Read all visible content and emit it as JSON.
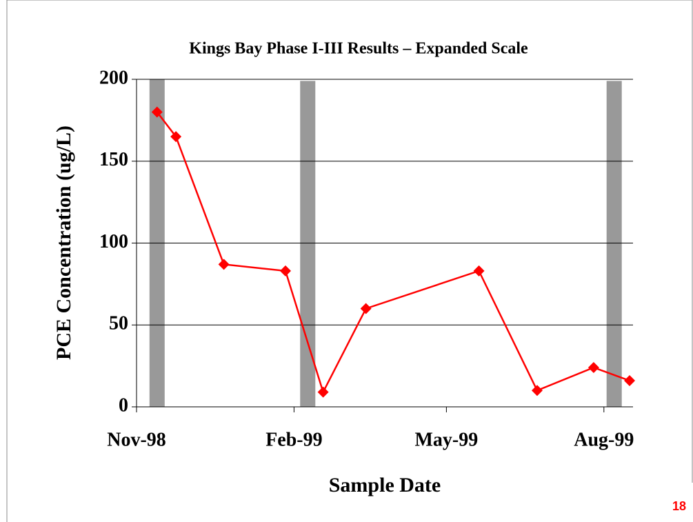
{
  "chart_data": {
    "type": "line",
    "title": "Kings Bay Phase I-III Results – Expanded Scale",
    "x_label": "Sample Date",
    "y_label": "PCE Concentration (ug/L)",
    "x": [
      36112,
      36123,
      36151,
      36187,
      36209,
      36234,
      36300,
      36334,
      36367,
      36388
    ],
    "values": [
      180,
      165,
      87,
      83,
      9,
      60,
      83,
      10,
      24,
      16
    ],
    "color": "#ff0000",
    "phase_bars": {
      "x": [
        36112,
        36200,
        36379
      ],
      "values": [
        200,
        199,
        199
      ],
      "color": "#999999"
    },
    "xlim": [
      36100,
      36390
    ],
    "xticks": [
      {
        "value": 36100,
        "label": "Nov-98"
      },
      {
        "value": 36192,
        "label": "Feb-99"
      },
      {
        "value": 36281,
        "label": "May-99"
      },
      {
        "value": 36373,
        "label": "Aug-99"
      }
    ],
    "ylim": [
      0,
      200
    ],
    "yticks": [
      0,
      50,
      100,
      150,
      200
    ],
    "grid": true
  },
  "page_number": "18"
}
